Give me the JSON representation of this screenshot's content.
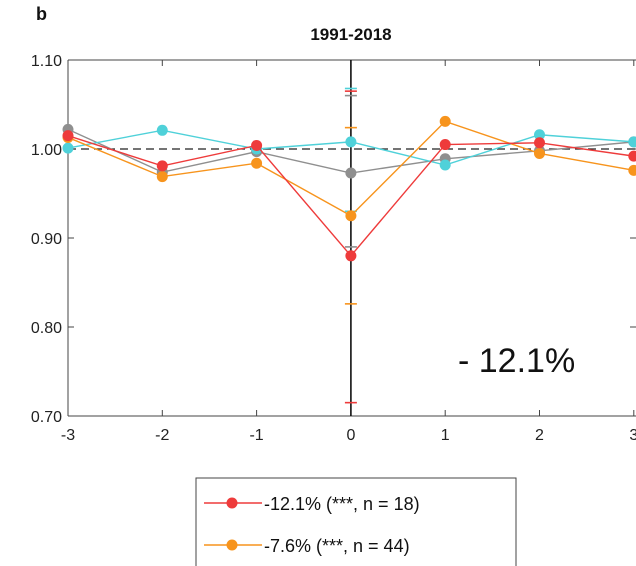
{
  "panel_label": "b",
  "chart_data": {
    "type": "line",
    "title": "1991-2018",
    "x": [
      -3,
      -2,
      -1,
      0,
      1,
      2,
      3
    ],
    "x_tick_labels": [
      "-3",
      "-2",
      "-1",
      "0",
      "1",
      "2",
      "3"
    ],
    "y_tick_values": [
      0.7,
      0.8,
      0.9,
      1.0,
      1.1
    ],
    "y_tick_labels": [
      "0.70",
      "0.80",
      "0.90",
      "1.00",
      "1.10"
    ],
    "xlim": [
      -3,
      3
    ],
    "ylim": [
      0.7,
      1.1
    ],
    "reference_line_y": 1.0,
    "annotation": "- 12.1%",
    "series": [
      {
        "name": "-12.1% (***, n = 18)",
        "color": "#ee3b3b",
        "values": [
          1.015,
          0.981,
          1.004,
          0.88,
          1.005,
          1.007,
          0.992
        ],
        "error_bar": {
          "x": 0,
          "low": 0.715,
          "high": 1.065
        }
      },
      {
        "name": "-7.6% (***, n = 44)",
        "color": "#f7941d",
        "values": [
          1.013,
          0.969,
          0.984,
          0.925,
          1.031,
          0.995,
          0.976
        ],
        "error_bar": {
          "x": 0,
          "low": 0.826,
          "high": 1.024
        }
      },
      {
        "name": "",
        "color": "#4fd1d9",
        "values": [
          1.001,
          1.021,
          1.0,
          1.008,
          0.982,
          1.016,
          1.008
        ],
        "error_bar": {
          "x": 0,
          "low": 0.93,
          "high": 1.068
        }
      },
      {
        "name": "",
        "color": "#8f8f8f",
        "values": [
          1.022,
          0.974,
          0.997,
          0.973,
          0.989,
          0.998,
          1.008
        ],
        "error_bar": {
          "x": 0,
          "low": 0.89,
          "high": 1.06
        }
      }
    ]
  }
}
